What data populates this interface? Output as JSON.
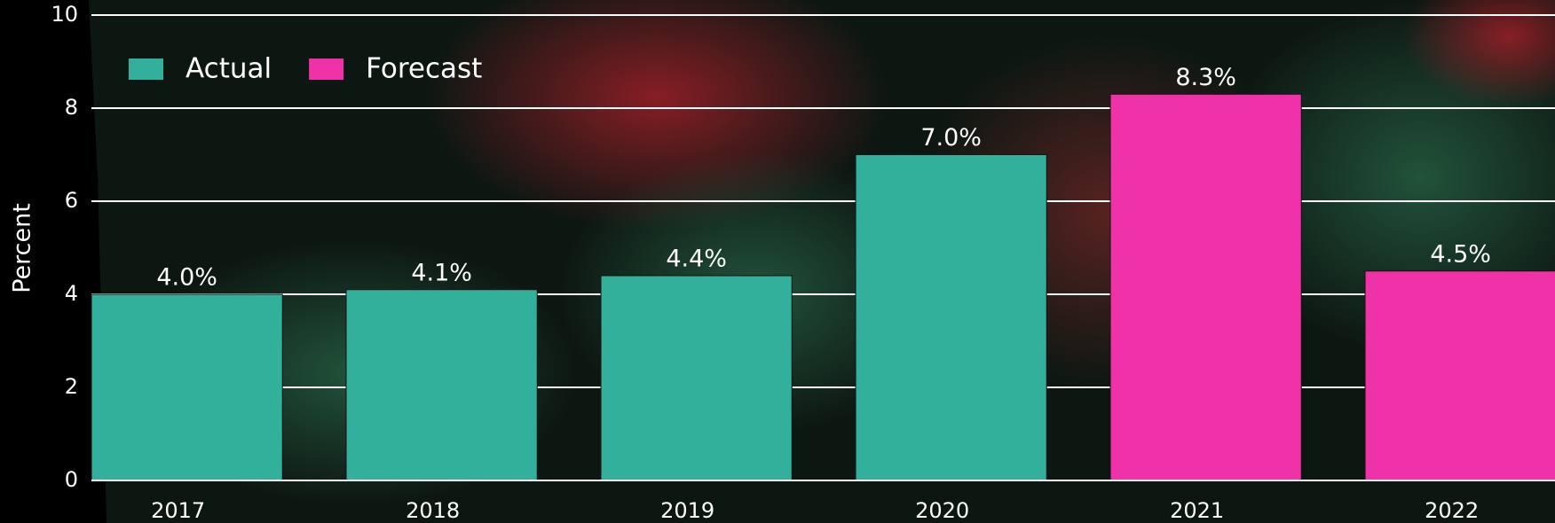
{
  "chart_data": {
    "type": "bar",
    "y_label": "Percent",
    "categories": [
      "2017",
      "2018",
      "2019",
      "2020",
      "2021",
      "2022"
    ],
    "series": [
      {
        "name": "Actual",
        "color": "#33b09c",
        "values": [
          4.0,
          4.1,
          4.4,
          7.0,
          null,
          null
        ],
        "value_labels": [
          "4.0%",
          "4.1%",
          "4.4%",
          "7.0%",
          null,
          null
        ]
      },
      {
        "name": "Forecast",
        "color": "#f032a8",
        "values": [
          null,
          null,
          null,
          null,
          8.3,
          4.5
        ],
        "value_labels": [
          null,
          null,
          null,
          null,
          "8.3%",
          "4.5%"
        ]
      }
    ],
    "ylim": [
      0,
      10
    ],
    "yticks": [
      0,
      2,
      4,
      6,
      8,
      10
    ],
    "grid": true,
    "legend": "upper left"
  }
}
